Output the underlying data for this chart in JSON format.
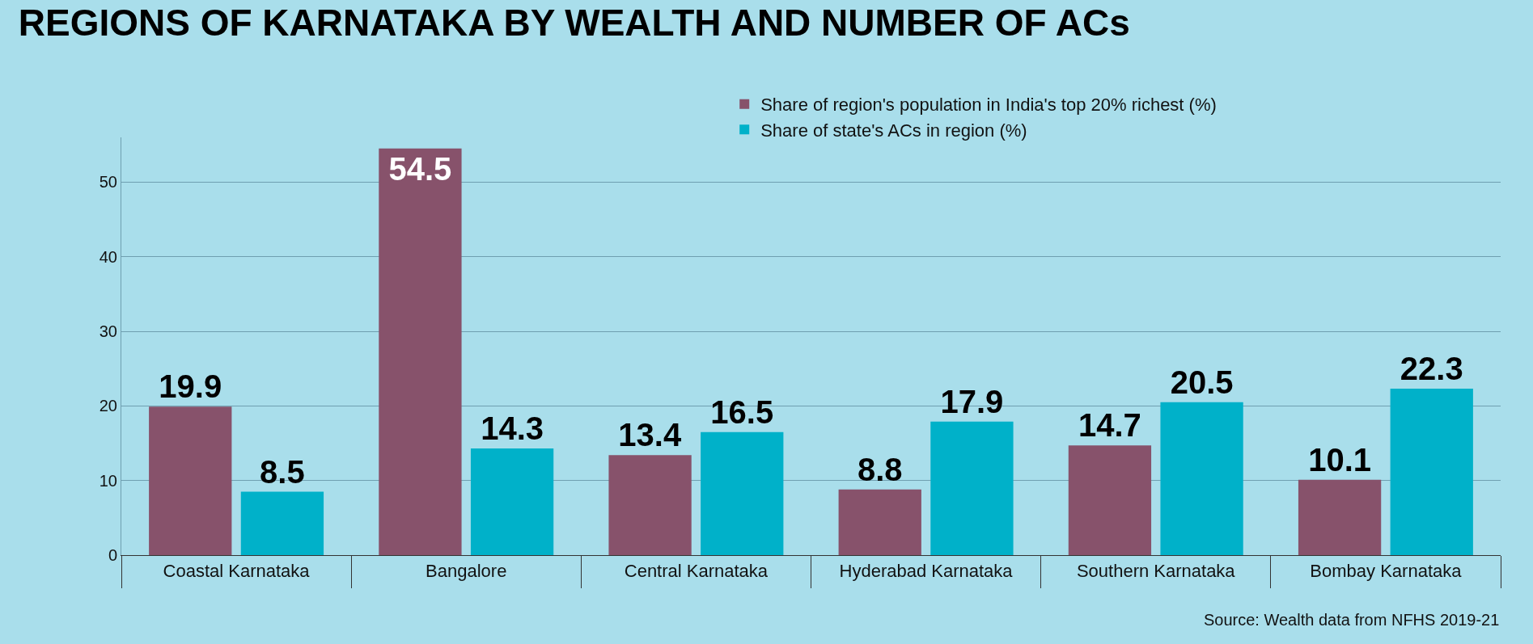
{
  "chart_data": {
    "type": "bar",
    "title": "REGIONS OF KARNATAKA BY WEALTH AND NUMBER OF ACs",
    "categories": [
      "Coastal Karnataka",
      "Bangalore",
      "Central Karnataka",
      "Hyderabad Karnataka",
      "Southern Karnataka",
      "Bombay Karnataka"
    ],
    "series": [
      {
        "name": "Share of region's population in India's top 20% richest (%)",
        "color": "#87526b",
        "values": [
          19.9,
          54.5,
          13.4,
          8.8,
          14.7,
          10.1
        ]
      },
      {
        "name": "Share of state's ACs in region (%)",
        "color": "#00b1c9",
        "values": [
          8.5,
          14.3,
          16.5,
          17.9,
          20.5,
          22.3
        ]
      }
    ],
    "ylim": [
      0,
      56
    ],
    "yticks": [
      0,
      10,
      20,
      30,
      40,
      50
    ],
    "grid": "y",
    "legend": "top",
    "data_labels": true,
    "annotations": [
      "Source: Wealth data from NFHS 2019-21"
    ]
  }
}
